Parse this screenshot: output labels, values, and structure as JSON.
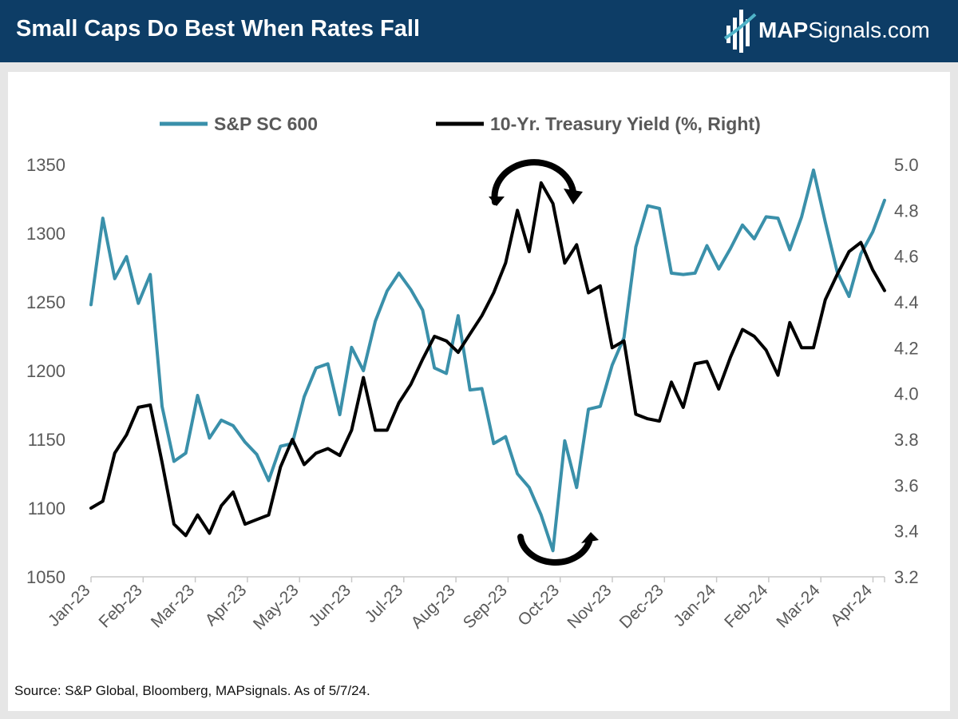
{
  "header": {
    "title": "Small Caps Do Best When Rates Fall",
    "brand_bold": "MAP",
    "brand_rest": "Signals.com",
    "bg_color": "#0d3d66"
  },
  "source_note": "Source: S&P Global, Bloomberg, MAPsignals. As of 5/7/24.",
  "chart_data": {
    "type": "line",
    "title": "Small Caps Do Best When Rates Fall",
    "legend_position": "top-center",
    "x_tick_labels": [
      "Jan-23",
      "Feb-23",
      "Mar-23",
      "Apr-23",
      "May-23",
      "Jun-23",
      "Jul-23",
      "Aug-23",
      "Sep-23",
      "Oct-23",
      "Nov-23",
      "Dec-23",
      "Jan-24",
      "Feb-24",
      "Mar-24",
      "Apr-24"
    ],
    "y_left": {
      "min": 1050,
      "max": 1350,
      "ticks": [
        "1050",
        "1100",
        "1150",
        "1200",
        "1250",
        "1300",
        "1350"
      ]
    },
    "y_right": {
      "min": 3.2,
      "max": 5.0,
      "ticks": [
        "3.2",
        "3.4",
        "3.6",
        "3.8",
        "4.0",
        "4.2",
        "4.4",
        "4.6",
        "4.8",
        "5.0"
      ]
    },
    "series": [
      {
        "name": "S&P SC 600",
        "axis": "left",
        "color": "#3a90aa",
        "values": [
          1248,
          1311,
          1267,
          1283,
          1249,
          1270,
          1174,
          1134,
          1140,
          1182,
          1151,
          1164,
          1160,
          1148,
          1139,
          1120,
          1145,
          1147,
          1181,
          1202,
          1205,
          1168,
          1217,
          1200,
          1236,
          1258,
          1271,
          1259,
          1244,
          1202,
          1198,
          1240,
          1186,
          1187,
          1147,
          1152,
          1125,
          1115,
          1095,
          1069,
          1149,
          1115,
          1172,
          1174,
          1204,
          1224,
          1290,
          1320,
          1318,
          1271,
          1270,
          1271,
          1291,
          1274,
          1289,
          1306,
          1296,
          1312,
          1311,
          1288,
          1312,
          1346,
          1308,
          1272,
          1254,
          1285,
          1301,
          1324
        ]
      },
      {
        "name": "10-Yr. Treasury Yield (%, Right)",
        "axis": "right",
        "color": "#000000",
        "values": [
          3.5,
          3.53,
          3.74,
          3.82,
          3.94,
          3.95,
          3.7,
          3.43,
          3.38,
          3.47,
          3.39,
          3.51,
          3.57,
          3.43,
          3.45,
          3.47,
          3.68,
          3.8,
          3.69,
          3.74,
          3.76,
          3.73,
          3.84,
          4.07,
          3.84,
          3.84,
          3.96,
          4.04,
          4.15,
          4.25,
          4.23,
          4.18,
          4.26,
          4.34,
          4.44,
          4.57,
          4.8,
          4.62,
          4.92,
          4.83,
          4.57,
          4.65,
          4.44,
          4.47,
          4.2,
          4.23,
          3.91,
          3.89,
          3.88,
          4.05,
          3.94,
          4.13,
          4.14,
          4.02,
          4.16,
          4.28,
          4.25,
          4.19,
          4.08,
          4.31,
          4.2,
          4.2,
          4.41,
          4.52,
          4.62,
          4.66,
          4.54,
          4.45
        ]
      }
    ],
    "annotations": [
      "arrow above Oct-23 yield peak",
      "arrow below Oct-23 small-cap trough"
    ]
  }
}
